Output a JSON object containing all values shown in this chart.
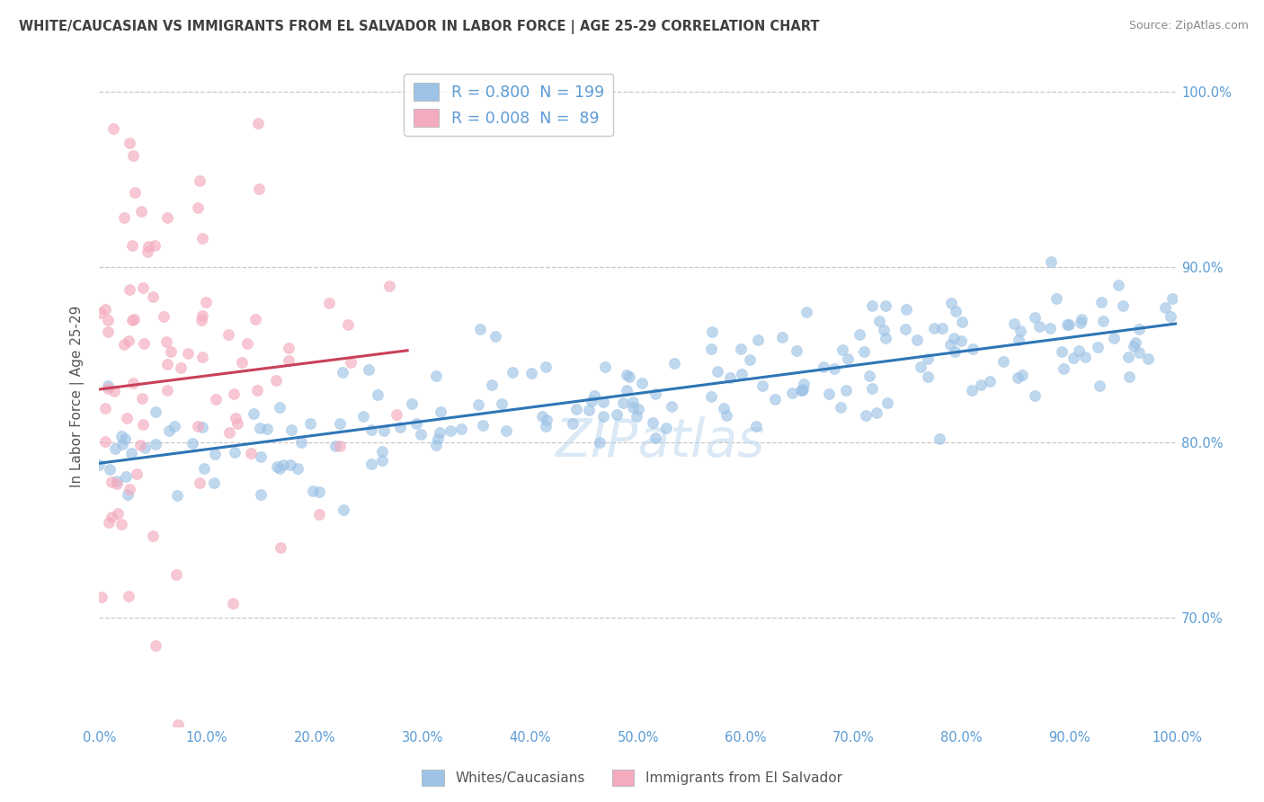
{
  "title": "WHITE/CAUCASIAN VS IMMIGRANTS FROM EL SALVADOR IN LABOR FORCE | AGE 25-29 CORRELATION CHART",
  "source": "Source: ZipAtlas.com",
  "ylabel": "In Labor Force | Age 25-29",
  "legend_labels": [
    "Whites/Caucasians",
    "Immigrants from El Salvador"
  ],
  "blue_color": "#9DC3E6",
  "pink_color": "#F4ABBE",
  "blue_line_color": "#2E75B6",
  "pink_line_color": "#C9405A",
  "blue_R": 0.8,
  "blue_N": 199,
  "pink_R": 0.008,
  "pink_N": 89,
  "watermark": "ZIPatlas",
  "xlim": [
    0.0,
    1.0
  ],
  "ylim": [
    0.638,
    1.015
  ],
  "yticks": [
    0.7,
    0.8,
    0.9,
    1.0
  ],
  "ytick_labels": [
    "70.0%",
    "80.0%",
    "90.0%",
    "100.0%"
  ],
  "xtick_vals": [
    0.0,
    0.1,
    0.2,
    0.3,
    0.4,
    0.5,
    0.6,
    0.7,
    0.8,
    0.9,
    1.0
  ],
  "xtick_labels": [
    "0.0%",
    "10.0%",
    "20.0%",
    "30.0%",
    "40.0%",
    "50.0%",
    "60.0%",
    "70.0%",
    "80.0%",
    "90.0%",
    "100.0%"
  ],
  "grid_color": "#C8C8C8",
  "background_color": "#FFFFFF",
  "title_color": "#404040",
  "axis_label_color": "#555555",
  "tick_label_color": "#5B9BD5"
}
